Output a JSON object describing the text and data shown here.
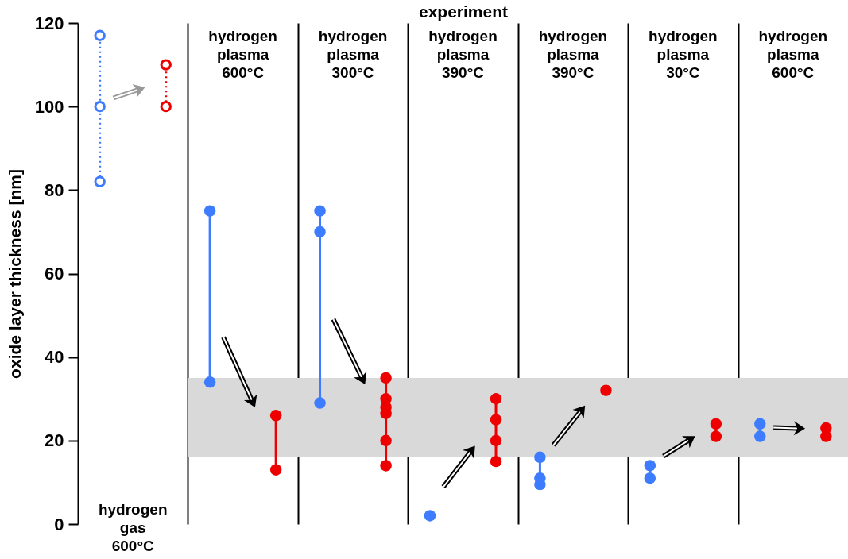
{
  "chart_data": {
    "type": "scatter",
    "xlabel": "experiment",
    "ylabel": "oxide layer thickness [nm]",
    "marker": "circle",
    "ylim": [
      0,
      120
    ],
    "yticks": [
      0,
      20,
      40,
      60,
      80,
      100,
      120
    ],
    "grid": "x",
    "categories": [
      "hydrogen\ngas\n600°C",
      "hydrogen\nplasma\n600°C",
      "hydrogen\nplasma\n300°C",
      "hydrogen\nplasma\n390°C",
      "hydrogen\nplasma\n390°C",
      "hydrogen\nplasma\n30°C",
      "hydrogen\nplasma\n600°C"
    ],
    "bands": [
      {
        "axis": "y",
        "from": 16,
        "to": 35,
        "color": "#d9d9d9"
      }
    ],
    "series": [
      {
        "color": "#3d7bff",
        "line_style": "dotted",
        "values": [
          82,
          null,
          null,
          null,
          null,
          null,
          null
        ]
      },
      {
        "color": "#3d7bff",
        "line_style": "dotted",
        "values": [
          100,
          null,
          null,
          null,
          null,
          null,
          null
        ]
      },
      {
        "color": "#3d7bff",
        "line_style": "dotted",
        "values": [
          117,
          null,
          null,
          null,
          null,
          null,
          null
        ]
      },
      {
        "color": "#ee0000",
        "line_style": "dotted",
        "values": [
          100,
          null,
          null,
          null,
          null,
          null,
          null
        ]
      },
      {
        "color": "#ee0000",
        "line_style": "dotted",
        "values": [
          110,
          null,
          null,
          null,
          null,
          null,
          null
        ]
      },
      {
        "color": "#3d7bff",
        "line_style": "solid",
        "values": [
          null,
          34,
          29,
          2,
          9.5,
          11,
          21
        ]
      },
      {
        "color": "#3d7bff",
        "line_style": "solid",
        "values": [
          null,
          75,
          70,
          null,
          11,
          14,
          24
        ]
      },
      {
        "color": "#3d7bff",
        "line_style": "solid",
        "values": [
          null,
          null,
          75,
          null,
          16,
          null,
          null
        ]
      },
      {
        "color": "#ee0000",
        "line_style": "solid",
        "values": [
          null,
          13,
          14,
          15,
          32,
          21,
          21
        ]
      },
      {
        "color": "#ee0000",
        "line_style": "solid",
        "values": [
          null,
          26,
          20,
          20,
          null,
          24,
          23
        ]
      },
      {
        "color": "#ee0000",
        "line_style": "solid",
        "values": [
          null,
          null,
          26.5,
          25,
          null,
          null,
          null
        ]
      },
      {
        "color": "#ee0000",
        "line_style": "solid",
        "values": [
          null,
          null,
          28,
          30,
          null,
          null,
          null
        ]
      },
      {
        "color": "#ee0000",
        "line_style": "solid",
        "values": [
          null,
          null,
          30,
          null,
          null,
          null,
          null
        ]
      },
      {
        "color": "#ee0000",
        "line_style": "solid",
        "values": [
          null,
          null,
          35,
          null,
          null,
          null,
          null
        ]
      }
    ]
  }
}
